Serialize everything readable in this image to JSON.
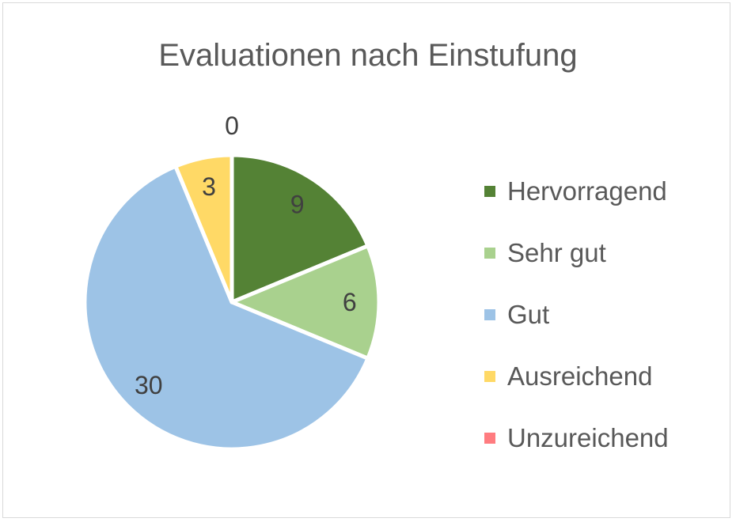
{
  "chart_data": {
    "type": "pie",
    "title": "Evaluationen nach Einstufung",
    "categories": [
      "Hervorragend",
      "Sehr gut",
      "Gut",
      "Ausreichend",
      "Unzureichend"
    ],
    "values": [
      9,
      6,
      30,
      3,
      0
    ],
    "data_labels": [
      "9",
      "6",
      "30",
      "3",
      "0"
    ],
    "colors": [
      "#548235",
      "#A9D18E",
      "#9DC3E6",
      "#FFD966",
      "#FF7C80"
    ],
    "start_angle_deg": 0,
    "direction": "clockwise",
    "legend_position": "right"
  }
}
